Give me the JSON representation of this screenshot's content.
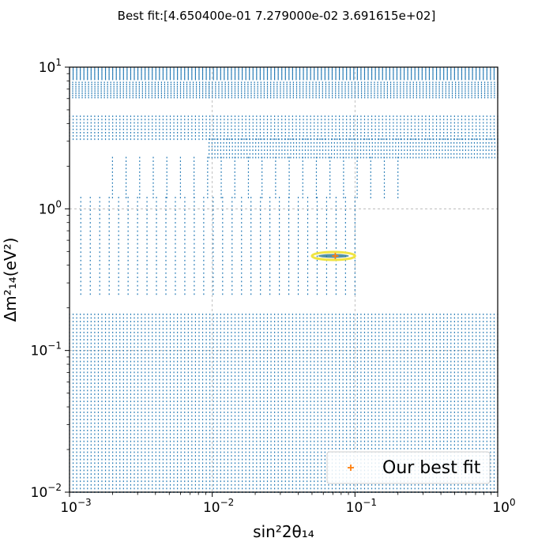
{
  "chart_data": {
    "type": "scatter",
    "title": "Best fit:[4.650400e-01 7.279000e-02 3.691615e+02]",
    "xlabel": "sin²2θ₁₄",
    "ylabel": "Δm²₁₄(eV²)",
    "xscale": "log",
    "yscale": "log",
    "xlim": [
      0.001,
      1
    ],
    "ylim": [
      0.01,
      10
    ],
    "x_ticks": [
      {
        "value": 0.001,
        "base": "10",
        "exp": "−3"
      },
      {
        "value": 0.01,
        "base": "10",
        "exp": "−2"
      },
      {
        "value": 0.1,
        "base": "10",
        "exp": "−1"
      },
      {
        "value": 1,
        "base": "10",
        "exp": "0"
      }
    ],
    "y_ticks": [
      {
        "value": 0.01,
        "base": "10",
        "exp": "−2"
      },
      {
        "value": 0.1,
        "base": "10",
        "exp": "−1"
      },
      {
        "value": 1,
        "base": "10",
        "exp": "0"
      },
      {
        "value": 10,
        "base": "10",
        "exp": "1"
      }
    ],
    "grid": true,
    "legend_position": "lower-right",
    "series_color": "#1f77b4",
    "best_fit_color": "#ff7f0e",
    "contour_colors": [
      "#f0e442",
      "#2a788e"
    ],
    "scan_grid_blocks": [
      {
        "x_range": [
          0.001,
          1
        ],
        "y_range": [
          8.2,
          9.9
        ],
        "n_cols": 120,
        "n_rows": 9
      },
      {
        "x_range": [
          0.001,
          0.0095
        ],
        "y_range": [
          6.1,
          7.8
        ],
        "n_cols": 45,
        "n_rows": 8
      },
      {
        "x_range": [
          0.0095,
          1
        ],
        "y_range": [
          6.1,
          7.8
        ],
        "n_cols": 90,
        "n_rows": 8
      },
      {
        "x_range": [
          0.001,
          1
        ],
        "y_range": [
          3.1,
          4.5
        ],
        "n_cols": 120,
        "n_rows": 8
      },
      {
        "x_range": [
          0.0095,
          1
        ],
        "y_range": [
          2.3,
          3.1
        ],
        "n_cols": 100,
        "n_rows": 6
      },
      {
        "x_range": [
          0.002,
          0.2
        ],
        "y_range": [
          1.2,
          2.3
        ],
        "n_cols": 22,
        "n_rows": 12
      },
      {
        "x_range": [
          0.0012,
          0.1
        ],
        "y_range": [
          0.25,
          1.2
        ],
        "n_cols": 30,
        "n_rows": 24
      },
      {
        "x_range": [
          0.001,
          1
        ],
        "y_range": [
          0.01,
          0.18
        ],
        "n_cols": 120,
        "n_rows": 50
      }
    ],
    "best_fit_point": {
      "x": 0.07279,
      "y": 0.465
    },
    "contour": {
      "x_range": [
        0.05,
        0.1
      ],
      "y": 0.465
    },
    "legend": [
      {
        "label": "Our best fit",
        "marker": "+"
      }
    ]
  }
}
